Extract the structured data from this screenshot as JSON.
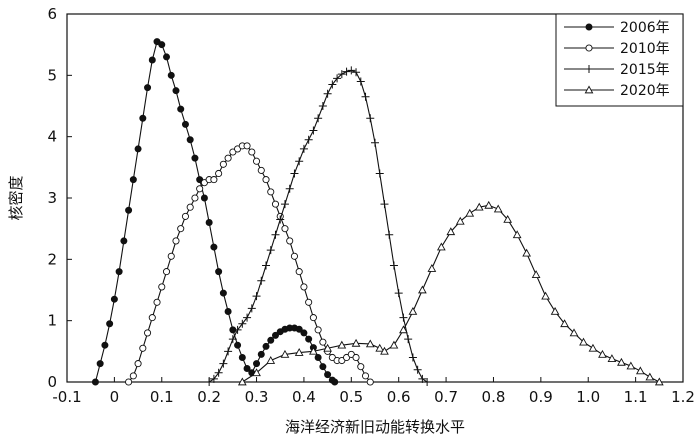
{
  "chart_data": {
    "type": "line",
    "xlabel": "海洋经济新旧动能转换水平",
    "ylabel": "核密度",
    "xlim": [
      -0.1,
      1.2
    ],
    "ylim": [
      0,
      6
    ],
    "xticks": [
      -0.1,
      0,
      0.1,
      0.2,
      0.3,
      0.4,
      0.5,
      0.6,
      0.7,
      0.8,
      0.9,
      1.0,
      1.1,
      1.2
    ],
    "xtick_labels": [
      "-0.1",
      "0",
      "0.1",
      "0.2",
      "0.3",
      "0.4",
      "0.5",
      "0.6",
      "0.7",
      "0.8",
      "0.9",
      "1.0",
      "1.1",
      "1.2"
    ],
    "yticks": [
      0,
      1,
      2,
      3,
      4,
      5,
      6
    ],
    "ytick_labels": [
      "0",
      "1",
      "2",
      "3",
      "4",
      "5",
      "6"
    ],
    "grid": false,
    "legend_position": "top-right",
    "series": [
      {
        "name": "2006年",
        "marker": "filled-circle",
        "points": [
          [
            -0.04,
            0
          ],
          [
            -0.03,
            0.3
          ],
          [
            -0.02,
            0.6
          ],
          [
            -0.01,
            0.95
          ],
          [
            0,
            1.35
          ],
          [
            0.01,
            1.8
          ],
          [
            0.02,
            2.3
          ],
          [
            0.03,
            2.8
          ],
          [
            0.04,
            3.3
          ],
          [
            0.05,
            3.8
          ],
          [
            0.06,
            4.3
          ],
          [
            0.07,
            4.8
          ],
          [
            0.08,
            5.25
          ],
          [
            0.09,
            5.55
          ],
          [
            0.1,
            5.5
          ],
          [
            0.11,
            5.3
          ],
          [
            0.12,
            5.0
          ],
          [
            0.13,
            4.75
          ],
          [
            0.14,
            4.45
          ],
          [
            0.15,
            4.2
          ],
          [
            0.16,
            3.95
          ],
          [
            0.17,
            3.65
          ],
          [
            0.18,
            3.3
          ],
          [
            0.19,
            3.0
          ],
          [
            0.2,
            2.6
          ],
          [
            0.21,
            2.2
          ],
          [
            0.22,
            1.8
          ],
          [
            0.23,
            1.45
          ],
          [
            0.24,
            1.15
          ],
          [
            0.25,
            0.85
          ],
          [
            0.26,
            0.6
          ],
          [
            0.27,
            0.4
          ],
          [
            0.28,
            0.22
          ],
          [
            0.29,
            0.15
          ],
          [
            0.3,
            0.3
          ],
          [
            0.31,
            0.45
          ],
          [
            0.32,
            0.58
          ],
          [
            0.33,
            0.68
          ],
          [
            0.34,
            0.76
          ],
          [
            0.35,
            0.82
          ],
          [
            0.36,
            0.86
          ],
          [
            0.37,
            0.88
          ],
          [
            0.38,
            0.88
          ],
          [
            0.39,
            0.86
          ],
          [
            0.4,
            0.8
          ],
          [
            0.41,
            0.7
          ],
          [
            0.42,
            0.56
          ],
          [
            0.43,
            0.4
          ],
          [
            0.44,
            0.25
          ],
          [
            0.45,
            0.12
          ],
          [
            0.46,
            0.03
          ],
          [
            0.465,
            0
          ]
        ]
      },
      {
        "name": "2010年",
        "marker": "open-circle",
        "points": [
          [
            0.03,
            0
          ],
          [
            0.04,
            0.1
          ],
          [
            0.05,
            0.3
          ],
          [
            0.06,
            0.55
          ],
          [
            0.07,
            0.8
          ],
          [
            0.08,
            1.05
          ],
          [
            0.09,
            1.3
          ],
          [
            0.1,
            1.55
          ],
          [
            0.11,
            1.8
          ],
          [
            0.12,
            2.05
          ],
          [
            0.13,
            2.3
          ],
          [
            0.14,
            2.5
          ],
          [
            0.15,
            2.7
          ],
          [
            0.16,
            2.85
          ],
          [
            0.17,
            3.0
          ],
          [
            0.18,
            3.15
          ],
          [
            0.19,
            3.25
          ],
          [
            0.2,
            3.3
          ],
          [
            0.21,
            3.3
          ],
          [
            0.22,
            3.4
          ],
          [
            0.23,
            3.55
          ],
          [
            0.24,
            3.65
          ],
          [
            0.25,
            3.75
          ],
          [
            0.26,
            3.8
          ],
          [
            0.27,
            3.85
          ],
          [
            0.28,
            3.85
          ],
          [
            0.29,
            3.75
          ],
          [
            0.3,
            3.6
          ],
          [
            0.31,
            3.45
          ],
          [
            0.32,
            3.3
          ],
          [
            0.33,
            3.1
          ],
          [
            0.34,
            2.9
          ],
          [
            0.35,
            2.7
          ],
          [
            0.36,
            2.5
          ],
          [
            0.37,
            2.3
          ],
          [
            0.38,
            2.05
          ],
          [
            0.39,
            1.8
          ],
          [
            0.4,
            1.55
          ],
          [
            0.41,
            1.3
          ],
          [
            0.42,
            1.05
          ],
          [
            0.43,
            0.85
          ],
          [
            0.44,
            0.65
          ],
          [
            0.45,
            0.5
          ],
          [
            0.46,
            0.4
          ],
          [
            0.47,
            0.35
          ],
          [
            0.48,
            0.35
          ],
          [
            0.49,
            0.4
          ],
          [
            0.5,
            0.45
          ],
          [
            0.51,
            0.4
          ],
          [
            0.52,
            0.25
          ],
          [
            0.53,
            0.1
          ],
          [
            0.54,
            0
          ]
        ]
      },
      {
        "name": "2015年",
        "marker": "plus",
        "points": [
          [
            0.2,
            0
          ],
          [
            0.21,
            0.05
          ],
          [
            0.22,
            0.15
          ],
          [
            0.23,
            0.3
          ],
          [
            0.24,
            0.5
          ],
          [
            0.25,
            0.7
          ],
          [
            0.26,
            0.85
          ],
          [
            0.27,
            0.95
          ],
          [
            0.28,
            1.05
          ],
          [
            0.29,
            1.2
          ],
          [
            0.3,
            1.4
          ],
          [
            0.31,
            1.65
          ],
          [
            0.32,
            1.9
          ],
          [
            0.33,
            2.15
          ],
          [
            0.34,
            2.4
          ],
          [
            0.35,
            2.65
          ],
          [
            0.36,
            2.9
          ],
          [
            0.37,
            3.15
          ],
          [
            0.38,
            3.4
          ],
          [
            0.39,
            3.6
          ],
          [
            0.4,
            3.8
          ],
          [
            0.41,
            3.95
          ],
          [
            0.42,
            4.1
          ],
          [
            0.43,
            4.3
          ],
          [
            0.44,
            4.5
          ],
          [
            0.45,
            4.7
          ],
          [
            0.46,
            4.85
          ],
          [
            0.47,
            4.95
          ],
          [
            0.48,
            5.02
          ],
          [
            0.49,
            5.06
          ],
          [
            0.5,
            5.08
          ],
          [
            0.51,
            5.05
          ],
          [
            0.52,
            4.9
          ],
          [
            0.53,
            4.65
          ],
          [
            0.54,
            4.3
          ],
          [
            0.55,
            3.9
          ],
          [
            0.56,
            3.4
          ],
          [
            0.57,
            2.9
          ],
          [
            0.58,
            2.4
          ],
          [
            0.59,
            1.9
          ],
          [
            0.6,
            1.45
          ],
          [
            0.61,
            1.05
          ],
          [
            0.62,
            0.7
          ],
          [
            0.63,
            0.4
          ],
          [
            0.64,
            0.2
          ],
          [
            0.65,
            0.05
          ],
          [
            0.66,
            0
          ]
        ]
      },
      {
        "name": "2020年",
        "marker": "open-triangle",
        "points": [
          [
            0.27,
            0
          ],
          [
            0.3,
            0.15
          ],
          [
            0.33,
            0.35
          ],
          [
            0.36,
            0.45
          ],
          [
            0.39,
            0.48
          ],
          [
            0.42,
            0.5
          ],
          [
            0.45,
            0.55
          ],
          [
            0.48,
            0.6
          ],
          [
            0.51,
            0.63
          ],
          [
            0.54,
            0.62
          ],
          [
            0.56,
            0.55
          ],
          [
            0.57,
            0.5
          ],
          [
            0.59,
            0.6
          ],
          [
            0.61,
            0.85
          ],
          [
            0.63,
            1.15
          ],
          [
            0.65,
            1.5
          ],
          [
            0.67,
            1.85
          ],
          [
            0.69,
            2.2
          ],
          [
            0.71,
            2.45
          ],
          [
            0.73,
            2.62
          ],
          [
            0.75,
            2.75
          ],
          [
            0.77,
            2.85
          ],
          [
            0.79,
            2.88
          ],
          [
            0.81,
            2.82
          ],
          [
            0.83,
            2.65
          ],
          [
            0.85,
            2.4
          ],
          [
            0.87,
            2.1
          ],
          [
            0.89,
            1.75
          ],
          [
            0.91,
            1.4
          ],
          [
            0.93,
            1.15
          ],
          [
            0.95,
            0.95
          ],
          [
            0.97,
            0.8
          ],
          [
            0.99,
            0.65
          ],
          [
            1.01,
            0.55
          ],
          [
            1.03,
            0.45
          ],
          [
            1.05,
            0.38
          ],
          [
            1.07,
            0.32
          ],
          [
            1.09,
            0.26
          ],
          [
            1.11,
            0.18
          ],
          [
            1.13,
            0.08
          ],
          [
            1.15,
            0
          ]
        ]
      }
    ]
  }
}
